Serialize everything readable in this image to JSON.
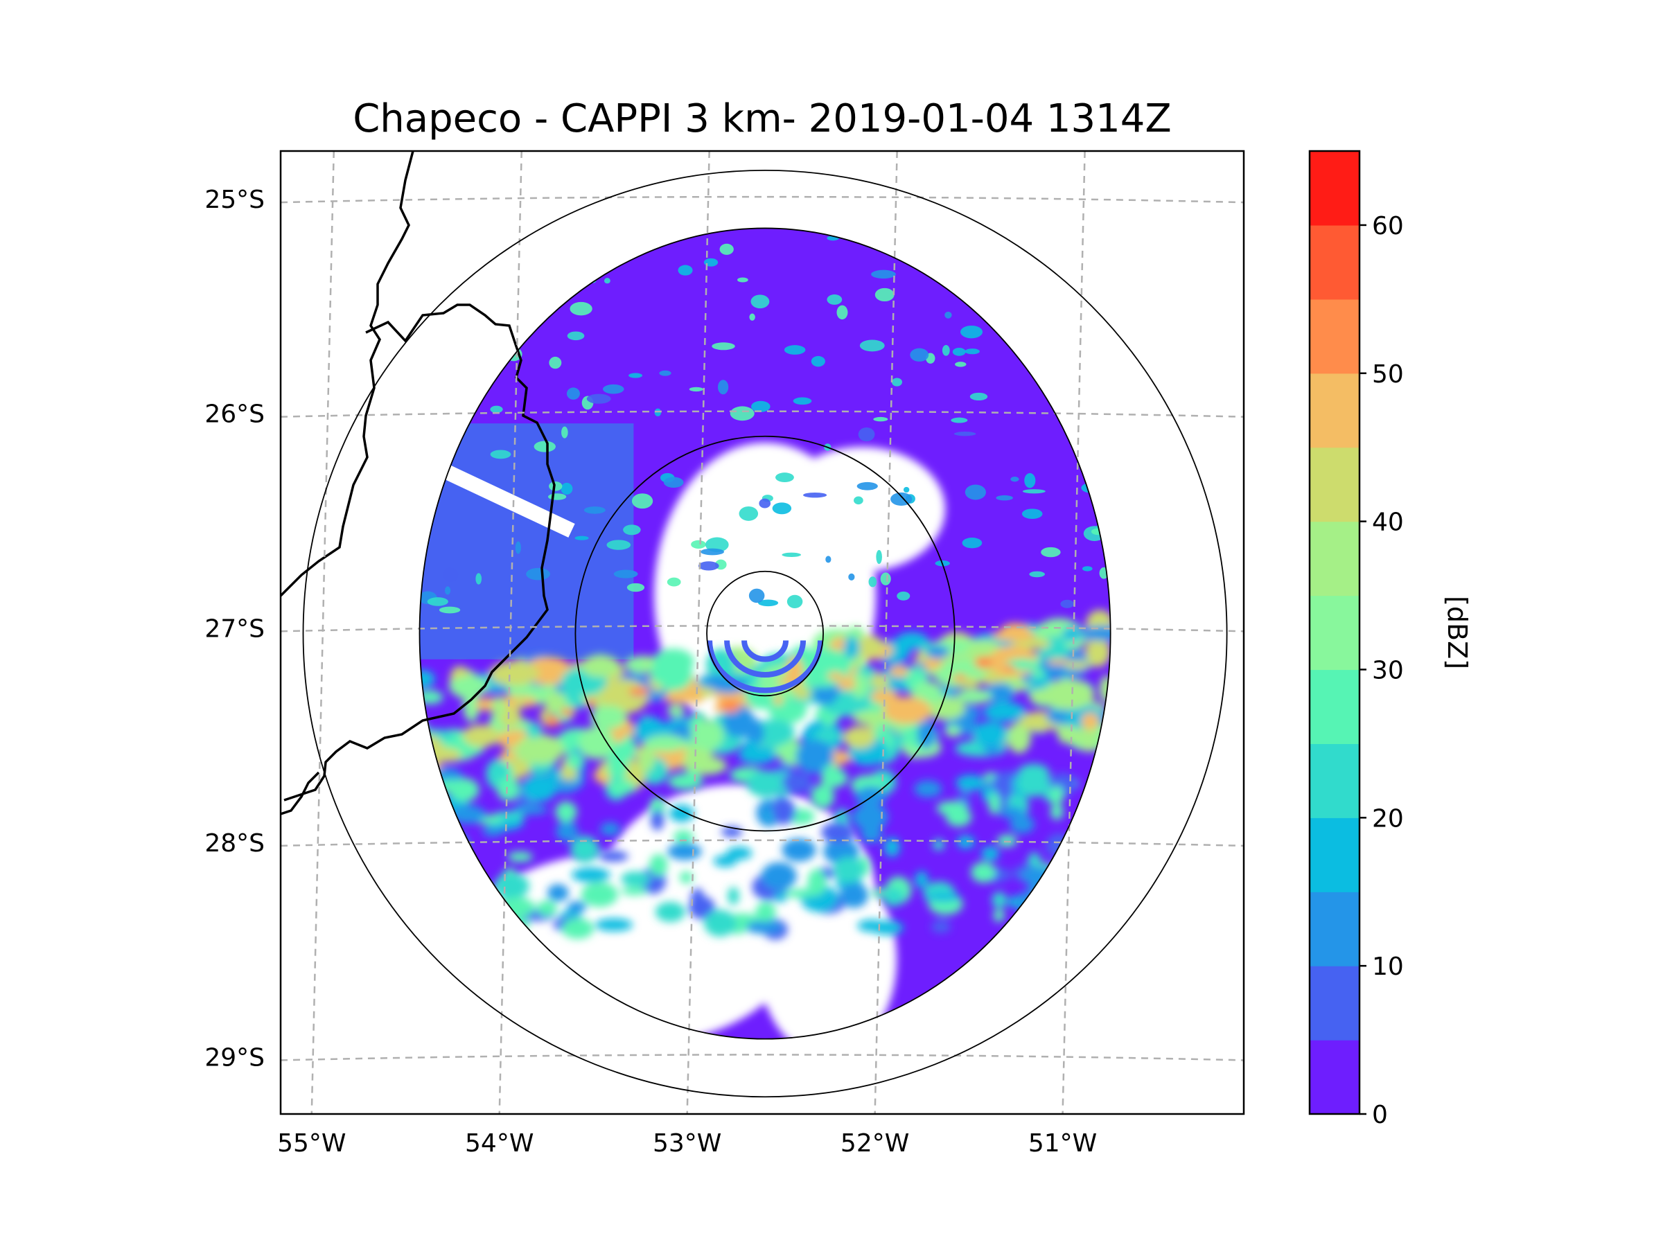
{
  "chart_data": {
    "type": "heatmap",
    "title": "Chapeco - CAPPI 3 km- 2019-01-04 1314Z",
    "field": "reflectivity",
    "xlabel": "",
    "ylabel": "",
    "lon_range": [
      -55.18,
      -50.05
    ],
    "lat_range": [
      -29.27,
      -24.78
    ],
    "lon_ticks": [
      -55,
      -54,
      -53,
      -52,
      -51
    ],
    "lat_ticks": [
      -25,
      -26,
      -27,
      -28,
      -29
    ],
    "lon_tick_labels": [
      "55°W",
      "54°W",
      "53°W",
      "52°W",
      "51°W"
    ],
    "lat_tick_labels": [
      "25°S",
      "26°S",
      "27°S",
      "28°S",
      "29°S"
    ],
    "grid": true,
    "radar_center": {
      "lon": -52.6,
      "lat": -27.03
    },
    "range_rings": [
      {
        "dlon": 0.31,
        "dlat": 0.29
      },
      {
        "dlon": 1.01,
        "dlat": 0.92
      },
      {
        "dlon": 1.84,
        "dlat": 1.89
      },
      {
        "dlon": 2.46,
        "dlat": 2.16
      }
    ],
    "colorbar": {
      "label": "[dBZ]",
      "min": 0,
      "max": 65,
      "step": 5,
      "ticks": [
        0,
        10,
        20,
        30,
        40,
        50,
        60
      ],
      "tick_labels": [
        "0",
        "10",
        "20",
        "30",
        "40",
        "50",
        "60"
      ],
      "colors": [
        "#6e1efe",
        "#4662f2",
        "#2495e8",
        "#0bbde1",
        "#31dbcc",
        "#56f4b4",
        "#88f79c",
        "#a5f087",
        "#cddc6d",
        "#f4bd64",
        "#ff8c4b",
        "#ff5a33",
        "#ff1c16"
      ]
    },
    "features": [
      {
        "type": "clear-beam",
        "from_lon": -54.48,
        "from_lat": -26.2,
        "to_lon": -53.63,
        "to_lat": -26.55
      },
      {
        "type": "intense-band",
        "lat": -27.25,
        "dbz_range": [
          25,
          55
        ]
      },
      {
        "type": "clear-zone",
        "lon": -52.6,
        "lat": -26.75
      }
    ]
  }
}
